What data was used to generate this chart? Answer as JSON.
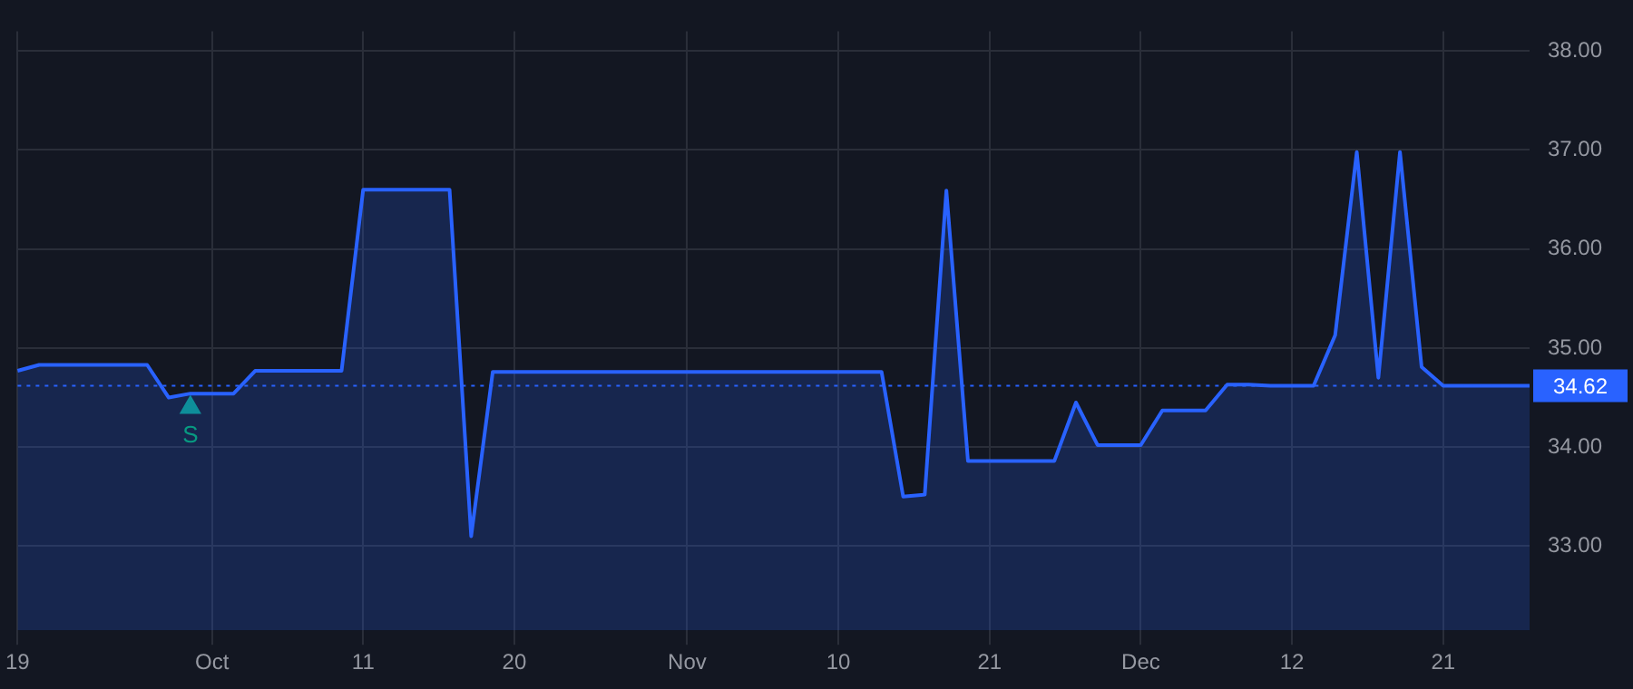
{
  "chart_data": {
    "type": "area",
    "categories": [
      "19",
      null,
      null,
      null,
      null,
      null,
      null,
      null,
      null,
      "Oct",
      null,
      null,
      null,
      null,
      null,
      null,
      "11",
      null,
      null,
      null,
      null,
      null,
      null,
      "20",
      null,
      null,
      null,
      null,
      null,
      null,
      null,
      "Nov",
      null,
      null,
      null,
      null,
      null,
      null,
      "10",
      null,
      null,
      null,
      null,
      null,
      null,
      "21",
      null,
      null,
      null,
      null,
      null,
      null,
      "Dec",
      null,
      null,
      null,
      null,
      null,
      null,
      "12",
      null,
      null,
      null,
      null,
      null,
      null,
      "21",
      null,
      null,
      null,
      null
    ],
    "series": [
      {
        "color": "#2962ff",
        "values": [
          34.77,
          34.83,
          34.83,
          34.83,
          34.83,
          34.83,
          34.83,
          34.5,
          34.54,
          34.54,
          34.54,
          34.77,
          34.77,
          34.77,
          34.77,
          34.77,
          36.6,
          36.6,
          36.6,
          36.6,
          36.6,
          33.1,
          34.76,
          34.76,
          34.76,
          34.76,
          34.76,
          34.76,
          34.76,
          34.76,
          34.76,
          34.76,
          34.76,
          34.76,
          34.76,
          34.76,
          34.76,
          34.76,
          34.76,
          34.76,
          34.76,
          33.5,
          33.52,
          36.59,
          33.86,
          33.86,
          33.86,
          33.86,
          33.86,
          34.45,
          34.02,
          34.02,
          34.02,
          34.37,
          34.37,
          34.37,
          34.63,
          34.63,
          34.62,
          34.62,
          34.62,
          35.13,
          36.98,
          34.7,
          36.98,
          34.81,
          34.62,
          34.62,
          34.62,
          34.62,
          34.62
        ]
      },
      {
        "type": "scatter",
        "color": "#089981",
        "marker": "triangle",
        "values": [
          null,
          null,
          null,
          null,
          null,
          null,
          null,
          null,
          34.4,
          null,
          null,
          null,
          null,
          null,
          null,
          null,
          null,
          null,
          null,
          null,
          null,
          null,
          null,
          null,
          null,
          null,
          null,
          null,
          null,
          null,
          null,
          null,
          null,
          null,
          null,
          null,
          null,
          null,
          null,
          null,
          null,
          null,
          null,
          null,
          null,
          null,
          null,
          null,
          null,
          null,
          null,
          null,
          null,
          null,
          null,
          null,
          null,
          null,
          null,
          null,
          null,
          null,
          null,
          null,
          null,
          null,
          null,
          null,
          null,
          null,
          null
        ],
        "value_labels": [
          null,
          null,
          null,
          null,
          null,
          null,
          null,
          null,
          "S",
          null,
          null,
          null,
          null,
          null,
          null,
          null,
          null,
          null,
          null,
          null,
          null,
          null,
          null,
          null,
          null,
          null,
          null,
          null,
          null,
          null,
          null,
          null,
          null,
          null,
          null,
          null,
          null,
          null,
          null,
          null,
          null,
          null,
          null,
          null,
          null,
          null,
          null,
          null,
          null,
          null,
          null,
          null,
          null,
          null,
          null,
          null,
          null,
          null,
          null,
          null,
          null,
          null,
          null,
          null,
          null,
          null,
          null,
          null,
          null,
          null,
          null
        ]
      }
    ],
    "ylim": [
      32.15,
      38.2
    ],
    "yticks": [
      {
        "value": 33,
        "label": "33.00"
      },
      {
        "value": 34,
        "label": "34.00"
      },
      {
        "value": 35,
        "label": "35.00"
      },
      {
        "value": 36,
        "label": "36.00"
      },
      {
        "value": 37,
        "label": "37.00"
      },
      {
        "value": 38,
        "label": "38.00"
      }
    ],
    "ref_lines": [
      {
        "axis": "y",
        "value": 34.62,
        "label": "34.62",
        "color": "#2962ff",
        "line_style": "dotted"
      }
    ],
    "grid": true,
    "legend": false
  }
}
